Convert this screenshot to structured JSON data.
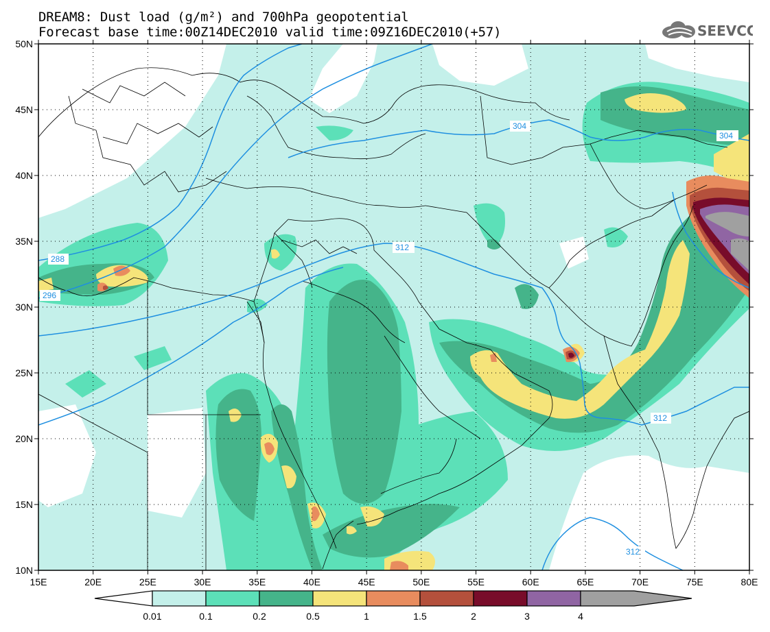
{
  "header": {
    "title": "DREAM8: Dust load (g/m²) and 700hPa geopotential",
    "subtitle": "Forecast base time:00Z14DEC2010 valid time:09Z16DEC2010(+57)",
    "logo_text": "SEEVCCC"
  },
  "map": {
    "lon_range": [
      15,
      80
    ],
    "lat_range": [
      10,
      50
    ],
    "lon_labels": [
      "15E",
      "20E",
      "25E",
      "30E",
      "35E",
      "40E",
      "45E",
      "50E",
      "55E",
      "60E",
      "65E",
      "70E",
      "75E",
      "80E"
    ],
    "lat_labels": [
      "10N",
      "15N",
      "20N",
      "25N",
      "30N",
      "35N",
      "40N",
      "45N",
      "50N"
    ],
    "contour_color": "#1e8fe0",
    "contours": [
      {
        "label": "288",
        "label_pos": [
          16.5,
          33.8
        ]
      },
      {
        "label": "296",
        "label_pos": [
          16.3,
          30.9
        ]
      },
      {
        "label": "304",
        "label_pos": [
          64.6,
          43.5
        ]
      },
      {
        "label": "304",
        "label_pos": [
          78.5,
          42.9
        ]
      },
      {
        "label": "312",
        "label_pos": [
          49.3,
          34.4
        ]
      },
      {
        "label": "312",
        "label_pos": [
          70.7,
          21.4
        ]
      },
      {
        "label": "312",
        "label_pos": [
          67.5,
          11.4
        ]
      }
    ]
  },
  "colorbar": {
    "labels": [
      "0.01",
      "0.1",
      "0.2",
      "0.5",
      "1",
      "1.5",
      "2",
      "3",
      "4"
    ],
    "colors": [
      "#c4f0ea",
      "#5ce0b8",
      "#45b48a",
      "#f5e47a",
      "#e88c5e",
      "#b4503c",
      "#780c2a",
      "#9065a3",
      "#a0a0a0"
    ]
  }
}
